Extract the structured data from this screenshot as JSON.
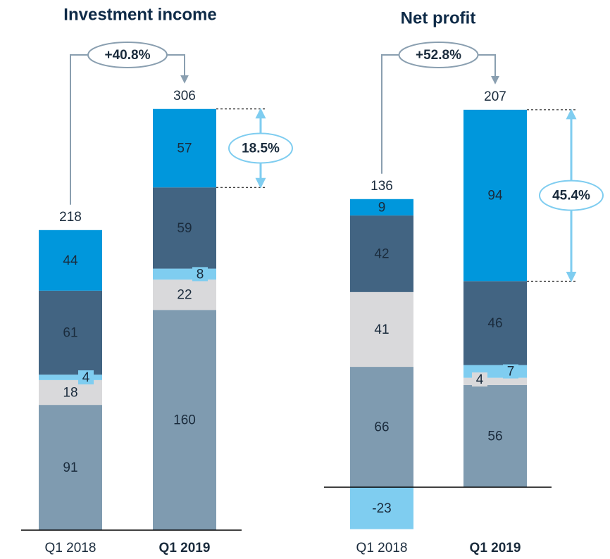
{
  "chart_data": [
    {
      "type": "bar",
      "stacked": true,
      "title": "Investment income",
      "categories": [
        "Q1 2018",
        "Q1 2019"
      ],
      "series": [
        {
          "color": "#7f9bb0",
          "values": [
            91,
            160
          ]
        },
        {
          "color": "#d9d9db",
          "values": [
            18,
            22
          ]
        },
        {
          "color": "#7fcdf0",
          "values": [
            4,
            8
          ]
        },
        {
          "color": "#426482",
          "values": [
            61,
            59
          ]
        },
        {
          "color": "#0097dc",
          "values": [
            44,
            57
          ]
        }
      ],
      "totals": [
        218,
        306
      ],
      "growth_label": "+40.8%",
      "share_label": "18.5%"
    },
    {
      "type": "bar",
      "stacked": true,
      "title": "Net profit",
      "categories": [
        "Q1 2018",
        "Q1 2019"
      ],
      "series": [
        {
          "color": "#7f9bb0",
          "values": [
            66,
            56
          ]
        },
        {
          "color": "#d9d9db",
          "values": [
            41,
            4
          ]
        },
        {
          "color": "#7fcdf0",
          "values": [
            -23,
            7
          ]
        },
        {
          "color": "#426482",
          "values": [
            42,
            46
          ]
        },
        {
          "color": "#0097dc",
          "values": [
            9,
            94
          ]
        }
      ],
      "totals": [
        136,
        207
      ],
      "growth_label": "+52.8%",
      "share_label": "45.4%"
    }
  ]
}
